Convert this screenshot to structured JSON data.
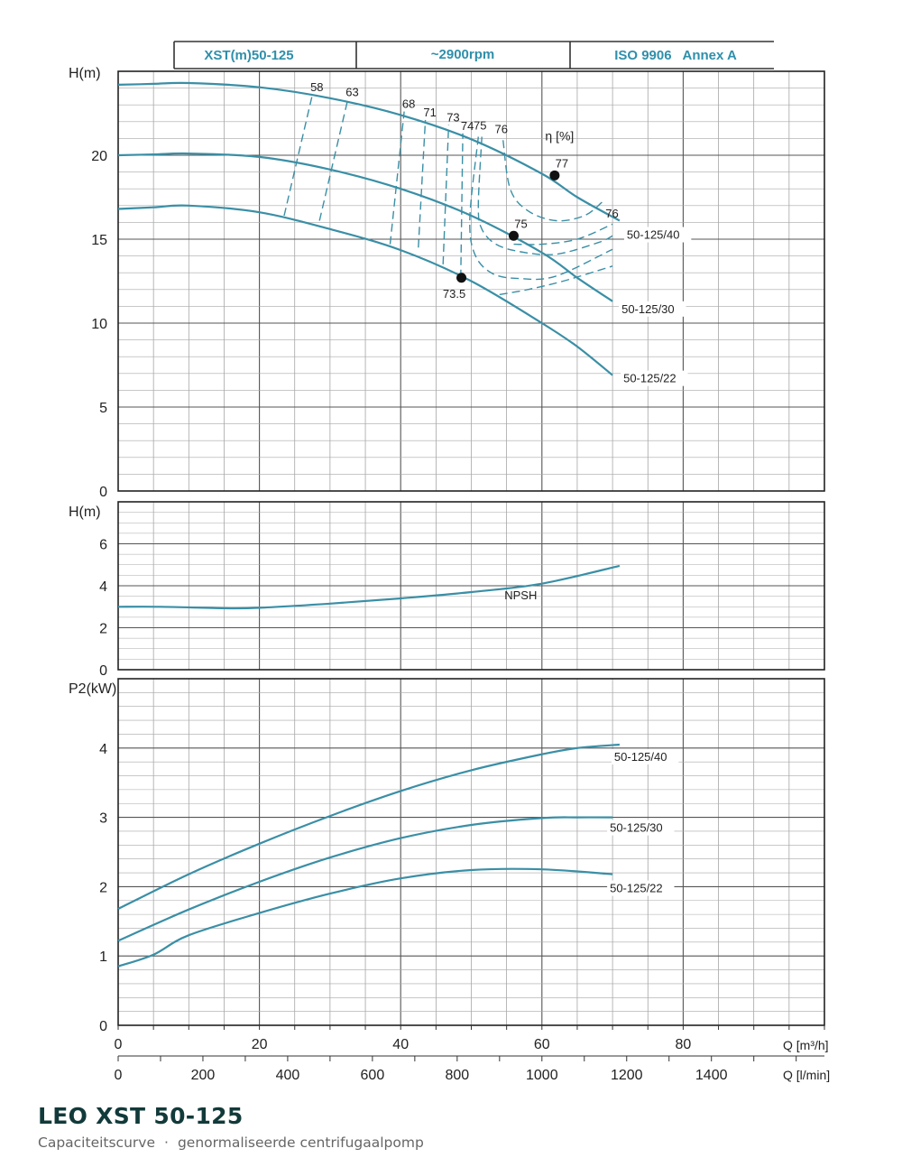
{
  "header": {
    "model": "XST(m)50-125",
    "speed": "~2900rpm",
    "standard": "ISO 9906   Annex A"
  },
  "footer": {
    "title": "LEO XST 50-125",
    "subtitle_left": "Capaciteitscurve",
    "separator": "·",
    "subtitle_right": "genormaliseerde centrifugaalpomp"
  },
  "colors": {
    "curve": "#3a8fa6",
    "grid": "#8a8a8a",
    "header_text": "#2f8fab",
    "frame": "#333333"
  },
  "chart_data": [
    {
      "id": "head",
      "type": "line",
      "ylabel": "H(m)",
      "xlim": [
        0,
        100
      ],
      "ylim": [
        0,
        25
      ],
      "y_ticks": [
        0,
        5,
        10,
        15,
        20
      ],
      "grid": true,
      "series": [
        {
          "name": "50-125/40",
          "x": [
            0,
            5,
            10,
            20,
            30,
            40,
            50,
            60,
            65,
            71
          ],
          "y": [
            24.2,
            24.25,
            24.3,
            24.05,
            23.4,
            22.4,
            20.95,
            18.9,
            17.5,
            16.1
          ]
        },
        {
          "name": "50-125/30",
          "x": [
            0,
            5,
            10,
            20,
            30,
            40,
            50,
            60,
            65,
            70
          ],
          "y": [
            20.0,
            20.05,
            20.1,
            19.9,
            19.15,
            18.0,
            16.4,
            14.2,
            12.7,
            11.3
          ]
        },
        {
          "name": "50-125/22",
          "x": [
            0,
            5,
            10,
            20,
            30,
            40,
            50,
            60,
            65,
            70
          ],
          "y": [
            16.8,
            16.9,
            17.0,
            16.6,
            15.6,
            14.35,
            12.5,
            10.0,
            8.6,
            6.9
          ]
        }
      ],
      "efficiency_label": "η [%]",
      "efficiency_lines": [
        {
          "label": "58",
          "x": [
            23.5,
            27.5
          ],
          "y": [
            16.4,
            23.6
          ]
        },
        {
          "label": "63",
          "x": [
            28.5,
            32.5
          ],
          "y": [
            16.1,
            23.3
          ]
        },
        {
          "label": "68",
          "x": [
            38.5,
            40.5
          ],
          "y": [
            14.7,
            22.6
          ]
        },
        {
          "label": "71",
          "x": [
            42.5,
            43.5
          ],
          "y": [
            14.5,
            22.1
          ]
        },
        {
          "label": "73",
          "x": [
            46,
            46.8
          ],
          "y": [
            13.5,
            21.8
          ]
        },
        {
          "label": "74",
          "x": [
            48.5,
            48.8
          ],
          "y": [
            12.7,
            21.3
          ]
        }
      ],
      "efficiency_contours": [
        {
          "label": "75",
          "x": [
            51.5,
            51,
            51.5,
            53.5,
            57,
            62,
            68,
            70
          ],
          "y": [
            21.1,
            17,
            15.6,
            14.7,
            14.25,
            14.1,
            14.8,
            15.2
          ]
        },
        {
          "label": "76",
          "x": [
            54.5,
            55.5,
            58,
            62,
            66,
            68.5
          ],
          "y": [
            20.9,
            18,
            16.7,
            16.1,
            16.4,
            17.2
          ]
        },
        {
          "label": "75",
          "x": [
            51,
            49.8,
            50.5,
            53,
            57,
            62,
            70
          ],
          "y": [
            21.1,
            16.3,
            14.1,
            12.95,
            12.65,
            12.8,
            14.4
          ]
        },
        {
          "label": "73.5",
          "x": [
            54,
            58,
            63,
            70
          ],
          "y": [
            11.7,
            12.0,
            12.5,
            13.4
          ]
        },
        {
          "label": "",
          "x": [
            56,
            60,
            65,
            70
          ],
          "y": [
            14.7,
            14.7,
            15.0,
            15.9
          ]
        }
      ],
      "bep_points": [
        {
          "label": "77",
          "x": 61.8,
          "y": 18.8
        },
        {
          "label": "75",
          "x": 56.0,
          "y": 15.2
        },
        {
          "label": "73.5",
          "x": 48.6,
          "y": 12.7
        }
      ],
      "eff_tail_labels": [
        {
          "label": "76",
          "x": 69.0,
          "y": 16.3
        },
        {
          "label": "75",
          "x": 72.0,
          "y": 15.2
        }
      ]
    },
    {
      "id": "npsh",
      "type": "line",
      "ylabel": "H(m)",
      "xlim": [
        0,
        100
      ],
      "ylim": [
        0,
        8
      ],
      "y_ticks": [
        0,
        2,
        4,
        6
      ],
      "grid": true,
      "series": [
        {
          "name": "NPSH",
          "x": [
            0,
            6,
            15,
            20,
            30,
            40,
            50,
            60,
            71
          ],
          "y": [
            3.0,
            3.0,
            2.93,
            2.95,
            3.15,
            3.4,
            3.7,
            4.1,
            4.95
          ]
        }
      ]
    },
    {
      "id": "power",
      "type": "line",
      "ylabel": "P2(kW)",
      "xlim": [
        0,
        100
      ],
      "ylim": [
        0,
        5
      ],
      "y_ticks": [
        0,
        1,
        2,
        3,
        4
      ],
      "grid": true,
      "x_ticks_m3h": [
        0,
        20,
        40,
        60,
        80
      ],
      "x_ticks_lmin": [
        0,
        200,
        400,
        600,
        800,
        1000,
        1200,
        1400
      ],
      "xlabel_m3h": "Q [m³/h]",
      "xlabel_lmin": "Q [l/min]",
      "series": [
        {
          "name": "50-125/40",
          "x": [
            0,
            10,
            20,
            30,
            40,
            50,
            60,
            65,
            71
          ],
          "y": [
            1.68,
            2.18,
            2.62,
            3.02,
            3.38,
            3.68,
            3.91,
            4.0,
            4.05
          ]
        },
        {
          "name": "50-125/30",
          "x": [
            0,
            10,
            20,
            30,
            40,
            50,
            60,
            65,
            70
          ],
          "y": [
            1.22,
            1.67,
            2.07,
            2.42,
            2.7,
            2.89,
            2.99,
            3.0,
            3.0
          ]
        },
        {
          "name": "50-125/22",
          "x": [
            0,
            5,
            10,
            20,
            30,
            40,
            50,
            60,
            70
          ],
          "y": [
            0.85,
            1.02,
            1.3,
            1.62,
            1.9,
            2.12,
            2.24,
            2.25,
            2.18
          ]
        }
      ]
    }
  ]
}
